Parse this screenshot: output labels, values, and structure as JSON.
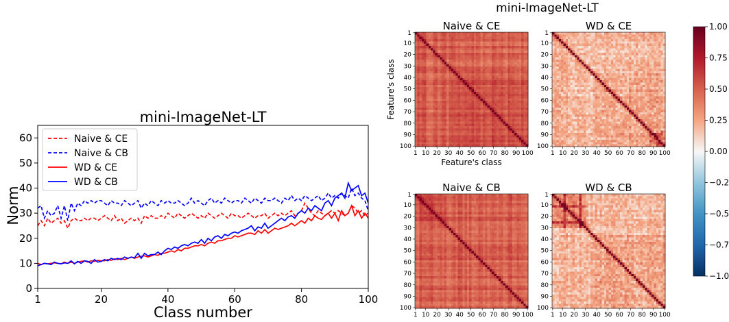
{
  "figure": {
    "line_title": "mini-ImageNet-LT",
    "heatmap_suptitle": "mini-ImageNet-LT"
  },
  "chart_data": [
    {
      "type": "line",
      "title": "mini-ImageNet-LT",
      "xlabel": "Class number",
      "ylabel": "Norm",
      "xlim": [
        1,
        100
      ],
      "ylim": [
        0,
        65
      ],
      "xticks": [
        "1",
        "20",
        "40",
        "60",
        "80",
        "100"
      ],
      "yticks": [
        "0",
        "10",
        "20",
        "30",
        "40",
        "50",
        "60"
      ],
      "legend_position": "top-left",
      "grid": false,
      "x": [
        1,
        2,
        3,
        4,
        5,
        6,
        7,
        8,
        9,
        10,
        11,
        12,
        13,
        14,
        15,
        16,
        17,
        18,
        19,
        20,
        21,
        22,
        23,
        24,
        25,
        26,
        27,
        28,
        29,
        30,
        31,
        32,
        33,
        34,
        35,
        36,
        37,
        38,
        39,
        40,
        41,
        42,
        43,
        44,
        45,
        46,
        47,
        48,
        49,
        50,
        51,
        52,
        53,
        54,
        55,
        56,
        57,
        58,
        59,
        60,
        61,
        62,
        63,
        64,
        65,
        66,
        67,
        68,
        69,
        70,
        71,
        72,
        73,
        74,
        75,
        76,
        77,
        78,
        79,
        80,
        81,
        82,
        83,
        84,
        85,
        86,
        87,
        88,
        89,
        90,
        91,
        92,
        93,
        94,
        95,
        96,
        97,
        98,
        99,
        100
      ],
      "series": [
        {
          "name": "Naive & CE",
          "color": "#ff0000",
          "style": "dashed",
          "values": [
            25,
            27,
            25,
            28,
            26,
            27,
            28,
            26,
            27,
            24,
            27,
            28,
            27,
            27,
            28,
            27,
            28,
            28,
            27,
            28,
            29,
            28,
            27,
            29,
            27,
            28,
            26,
            27,
            28,
            27,
            28,
            26,
            29,
            28,
            29,
            28,
            28,
            29,
            28,
            30,
            29,
            28,
            30,
            29,
            28,
            29,
            30,
            29,
            28,
            29,
            28,
            30,
            29,
            28,
            29,
            30,
            29,
            28,
            30,
            29,
            29,
            28,
            29,
            30,
            29,
            28,
            29,
            29,
            30,
            28,
            29,
            30,
            29,
            30,
            29,
            30,
            31,
            29,
            30,
            31,
            34,
            32,
            30,
            29,
            31,
            30,
            29,
            30,
            31,
            30,
            31,
            30,
            29,
            30,
            33,
            32,
            30,
            31,
            29,
            30
          ]
        },
        {
          "name": "Naive & CB",
          "color": "#0000ff",
          "style": "dashed",
          "values": [
            32,
            33,
            28,
            31,
            29,
            30,
            33,
            28,
            33,
            27,
            34,
            31,
            34,
            33,
            35,
            34,
            35,
            34,
            35,
            35,
            34,
            33,
            35,
            34,
            34,
            33,
            35,
            34,
            33,
            34,
            35,
            32,
            34,
            33,
            35,
            34,
            33,
            35,
            34,
            35,
            34,
            34,
            35,
            34,
            33,
            34,
            36,
            34,
            35,
            34,
            33,
            35,
            36,
            34,
            35,
            34,
            36,
            35,
            34,
            35,
            35,
            34,
            36,
            35,
            34,
            36,
            35,
            34,
            36,
            35,
            35,
            36,
            35,
            34,
            36,
            35,
            37,
            35,
            36,
            35,
            37,
            36,
            35,
            36,
            37,
            35,
            36,
            38,
            36,
            37,
            36,
            38,
            37,
            36,
            40,
            37,
            38,
            36,
            35,
            31
          ]
        },
        {
          "name": "WD & CE",
          "color": "#ff0000",
          "style": "solid",
          "values": [
            10,
            9.5,
            10,
            9.8,
            10,
            10.2,
            10,
            9.8,
            10.5,
            10,
            10.5,
            10,
            10.5,
            10.8,
            11,
            10.5,
            11,
            10.8,
            11.2,
            11,
            11,
            11.5,
            11.2,
            11.8,
            11.5,
            12,
            11.5,
            12,
            12.5,
            12,
            12.5,
            12.8,
            13,
            12.5,
            13,
            13.5,
            13.2,
            14,
            14,
            14.5,
            15,
            14.5,
            15.5,
            15,
            16,
            16,
            16.5,
            17,
            17,
            17.5,
            17,
            18,
            18.5,
            18,
            19,
            19,
            19.5,
            20,
            20,
            21,
            20.5,
            21,
            21.5,
            22,
            22,
            21.5,
            23,
            22,
            23.5,
            22,
            23,
            24,
            23.5,
            24,
            24.5,
            25,
            26,
            25,
            26,
            27,
            26,
            28,
            27,
            29,
            28,
            27.5,
            29,
            30,
            28,
            30,
            27,
            31,
            29,
            30,
            33,
            29,
            31,
            28,
            30,
            28
          ]
        },
        {
          "name": "WD & CB",
          "color": "#0000ff",
          "style": "solid",
          "values": [
            9,
            9.5,
            10,
            9.8,
            9.5,
            10.5,
            10,
            9.8,
            10.2,
            10,
            11,
            9.8,
            10.8,
            10,
            11,
            10.8,
            10,
            11.5,
            10.5,
            10.8,
            11.5,
            11,
            12,
            11.5,
            12,
            11.5,
            12.5,
            12,
            12.5,
            12.2,
            14,
            12,
            14,
            13,
            13.5,
            13.5,
            14.5,
            13.5,
            15,
            16,
            15.5,
            16.5,
            16,
            17,
            17.5,
            17,
            18,
            18.5,
            18,
            19.5,
            18,
            20,
            19,
            20.5,
            21,
            20,
            21.5,
            21,
            22,
            22.5,
            22,
            23,
            23.5,
            24,
            25,
            23,
            24.5,
            24,
            26,
            24,
            25,
            26,
            27,
            28,
            27,
            28.5,
            29,
            28,
            30,
            31,
            30,
            32,
            31,
            33,
            32,
            31,
            34,
            35,
            33,
            36,
            37,
            38,
            36,
            42,
            39,
            40,
            41,
            37,
            38,
            34
          ]
        }
      ]
    },
    {
      "type": "heatmap",
      "title": "Naive & CE",
      "xlabel": "Feature's class",
      "ylabel": "Feature's class",
      "ticks": [
        "1",
        "10",
        "20",
        "30",
        "40",
        "50",
        "60",
        "70",
        "80",
        "90",
        "100"
      ],
      "description": "strong red diagonal on uniformly red off-diagonal (~0.5); visible block split near class 36"
    },
    {
      "type": "heatmap",
      "title": "WD & CE",
      "ticks": [
        "1",
        "10",
        "20",
        "30",
        "40",
        "50",
        "60",
        "70",
        "80",
        "90",
        "100"
      ],
      "description": "strong diagonal, light off-diagonal (~0.2); darker texture in the lower-right tail block"
    },
    {
      "type": "heatmap",
      "title": "Naive & CB",
      "ticks": [
        "1",
        "10",
        "20",
        "30",
        "40",
        "50",
        "60",
        "70",
        "80",
        "90",
        "100"
      ],
      "description": "strong diagonal on uniformly red off-diagonal (~0.5); darker head block near classes 5-25"
    },
    {
      "type": "heatmap",
      "title": "WD & CB",
      "ticks": [
        "1",
        "10",
        "20",
        "30",
        "40",
        "50",
        "60",
        "70",
        "80",
        "90",
        "100"
      ],
      "description": "strong diagonal, light off-diagonal; dark grid-like head block classes 1-30, textured tail block"
    },
    {
      "type": "colorbar",
      "colormap": "RdBu_r",
      "range": [
        -1.0,
        1.0
      ],
      "ticks": [
        "1.00",
        "0.75",
        "0.50",
        "0.25",
        "0.00",
        "−0.25",
        "−0.50",
        "−0.75",
        "−1.00"
      ]
    }
  ]
}
